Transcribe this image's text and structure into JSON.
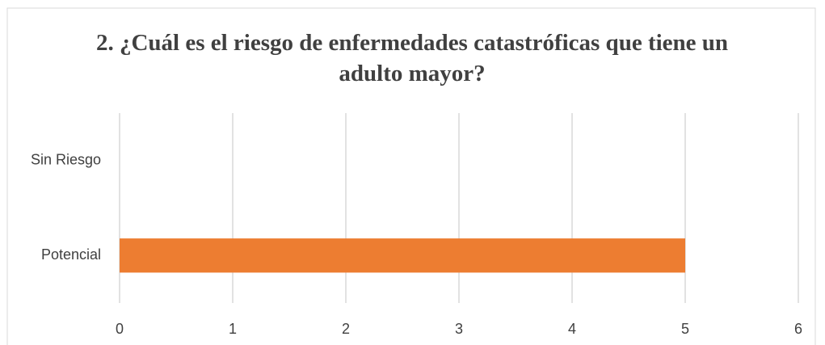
{
  "chart_data": {
    "type": "bar",
    "orientation": "horizontal",
    "title": "2. ¿Cuál es el riesgo de enfermedades catastróficas que tiene un adulto mayor?",
    "categories": [
      "Potencial",
      "Sin Riesgo"
    ],
    "values": [
      5,
      0
    ],
    "color": "#ed7d31",
    "xlim": [
      0,
      6
    ],
    "xticks": [
      0,
      1,
      2,
      3,
      4,
      5,
      6
    ],
    "grid": true
  }
}
